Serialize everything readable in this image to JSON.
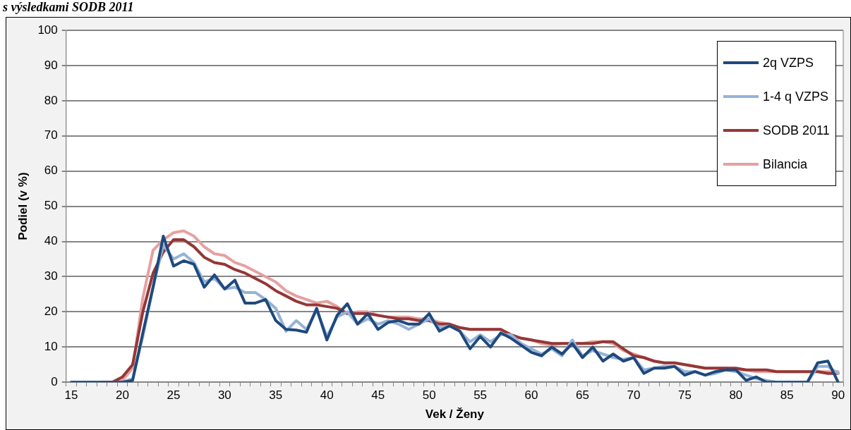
{
  "chart_data": {
    "type": "line",
    "title": "s výsledkami SODB 2011",
    "xlabel": "Vek / Ženy",
    "ylabel": "Podiel (v %)",
    "categories": [
      "15",
      null,
      null,
      null,
      null,
      "20",
      null,
      null,
      null,
      null,
      "25",
      null,
      null,
      null,
      null,
      "30",
      null,
      null,
      null,
      null,
      "35",
      null,
      null,
      null,
      null,
      "40",
      null,
      null,
      null,
      null,
      "45",
      null,
      null,
      null,
      null,
      "50",
      null,
      null,
      null,
      null,
      "55",
      null,
      null,
      null,
      null,
      "60",
      null,
      null,
      null,
      null,
      "65",
      null,
      null,
      null,
      null,
      "70",
      null,
      null,
      null,
      null,
      "75",
      null,
      null,
      null,
      null,
      "80",
      null,
      null,
      null,
      null,
      "85",
      null,
      null,
      null,
      null,
      "90"
    ],
    "ylim": [
      0,
      100
    ],
    "yticks": [
      0,
      10,
      20,
      30,
      40,
      50,
      60,
      70,
      80,
      90,
      100
    ],
    "grid": "y",
    "legend": "top right",
    "marker": "none",
    "line_style": "solid",
    "series": [
      {
        "name": "2q VZPS",
        "color": "#1f497d",
        "values": [
          0,
          0,
          0,
          0,
          0,
          0,
          0.5,
          14,
          27,
          41.5,
          33,
          34.5,
          33.5,
          27,
          30.5,
          26.5,
          29,
          22.5,
          22.5,
          23.5,
          17.5,
          15,
          14.8,
          14.2,
          21,
          12,
          19,
          22.3,
          16.5,
          19.5,
          15,
          17,
          17.5,
          16.5,
          16.5,
          19.5,
          14.5,
          16,
          14.5,
          9.5,
          13,
          10,
          14,
          12.5,
          10.5,
          8.5,
          7.5,
          10,
          8,
          11,
          7,
          10,
          6,
          8,
          6,
          7,
          2.5,
          4,
          4,
          4.5,
          2,
          3,
          2,
          3,
          3.5,
          3.5,
          0.5,
          1.5,
          0,
          0,
          0,
          0,
          0,
          5.5,
          6,
          0
        ]
      },
      {
        "name": "1-4 q VZPS",
        "color": "#95b3d7",
        "values": [
          0,
          0,
          0,
          0,
          0,
          0,
          1,
          13,
          27,
          39,
          35,
          36.5,
          34,
          28.5,
          29.5,
          26.5,
          27,
          25.5,
          25.5,
          23.5,
          21,
          14.5,
          17.5,
          15,
          20.5,
          13,
          18.5,
          20,
          16.5,
          18,
          16.5,
          17.5,
          16.5,
          15,
          16.5,
          18,
          15.5,
          16,
          14.5,
          11.5,
          13.5,
          11.5,
          13.5,
          13.5,
          11,
          9.5,
          8,
          9.5,
          7.5,
          12,
          7.5,
          9,
          8,
          7,
          6.5,
          7,
          3.5,
          4,
          4.5,
          4.5,
          3,
          3,
          2,
          2.5,
          3.5,
          3,
          2,
          1,
          0.5,
          0,
          0,
          0,
          0,
          4.5,
          4.5,
          2.5
        ]
      },
      {
        "name": "SODB 2011",
        "color": "#953735",
        "values": [
          null,
          null,
          null,
          0,
          0,
          1.5,
          5,
          20,
          31,
          37,
          40.5,
          40.5,
          38.5,
          35.5,
          34,
          33.5,
          32,
          31,
          29.5,
          28,
          26,
          24.5,
          23,
          22,
          22,
          21.5,
          21,
          19.5,
          19.5,
          19.5,
          19,
          18.5,
          18,
          18,
          17.5,
          17.5,
          16.5,
          16.5,
          15.5,
          15,
          15,
          15,
          15,
          13.5,
          12.5,
          12,
          11.5,
          11,
          11,
          11,
          11,
          11,
          11.5,
          11.5,
          9.5,
          7.5,
          7,
          6,
          5.5,
          5.5,
          5,
          4.5,
          4,
          4,
          4,
          4,
          3.5,
          3.5,
          3.5,
          3,
          3,
          3,
          3,
          3,
          2.5,
          2.5
        ]
      },
      {
        "name": "Bilancia",
        "color": "#e6a0a0",
        "values": [
          null,
          null,
          null,
          0,
          0,
          0.5,
          4,
          24,
          37.5,
          40.5,
          42.5,
          43,
          41.5,
          38.5,
          36.5,
          36,
          34,
          33,
          31.5,
          30,
          28.5,
          26,
          24.5,
          23.5,
          22.5,
          23,
          21.5,
          19.5,
          20,
          20,
          19,
          18.5,
          18.5,
          18.5,
          18,
          18,
          17,
          16.5,
          15.5,
          15,
          15,
          15,
          15,
          13.5,
          12.5,
          12,
          11,
          10.5,
          11,
          11,
          11,
          11.5,
          11.5,
          11,
          9,
          8,
          7,
          6,
          5.5,
          5.5,
          5,
          4.5,
          4,
          4,
          4,
          3.5,
          3.5,
          3,
          3,
          3,
          3,
          3,
          3,
          3,
          3,
          3
        ]
      }
    ]
  }
}
